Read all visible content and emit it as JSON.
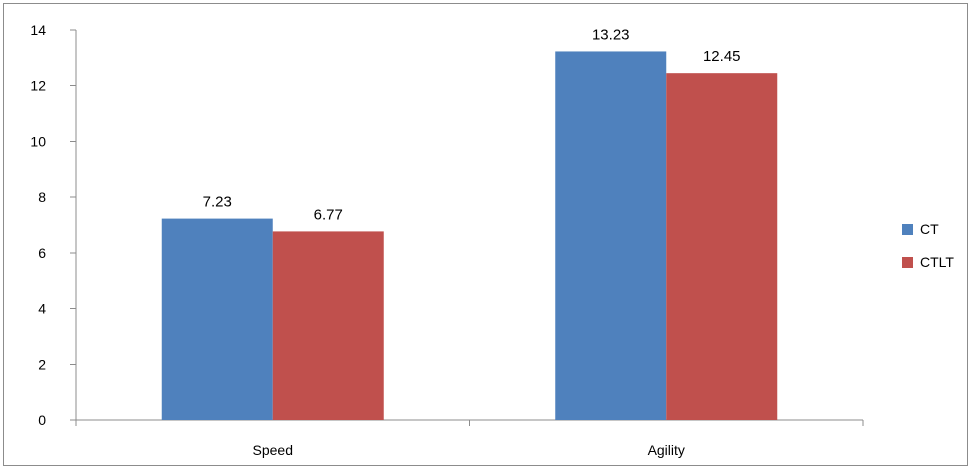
{
  "chart_data": {
    "type": "bar",
    "categories": [
      "Speed",
      "Agility"
    ],
    "series": [
      {
        "name": "CT",
        "values": [
          7.23,
          13.23
        ],
        "color": "#4F81BD"
      },
      {
        "name": "CTLT",
        "values": [
          6.77,
          12.45
        ],
        "color": "#C0504D"
      }
    ],
    "y_ticks": [
      "0",
      "2",
      "4",
      "6",
      "8",
      "10",
      "12",
      "14"
    ],
    "ylim": [
      0,
      14
    ],
    "grid": false,
    "legend_position": "right"
  }
}
